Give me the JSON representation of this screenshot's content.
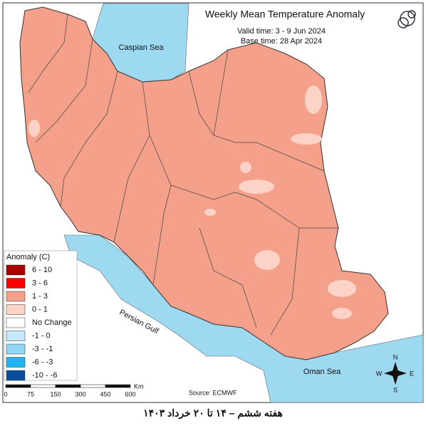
{
  "header": {
    "title": "Weekly Mean Temperature Anomaly",
    "valid_time": "Valid time: 3 - 9 Jun 2024",
    "base_time": "Base time: 28 Apr 2024"
  },
  "labels": {
    "caspian": "Caspian Sea",
    "gulf": "Persian Gulf",
    "oman": "Oman Sea"
  },
  "legend": {
    "title": "Anomaly (C)",
    "items": [
      {
        "label": "6 - 10",
        "color": "#a80000"
      },
      {
        "label": "3 - 6",
        "color": "#ff0000"
      },
      {
        "label": "1 - 3",
        "color": "#f5a08a"
      },
      {
        "label": "0 - 1",
        "color": "#fcd3c6"
      },
      {
        "label": "No Change",
        "color": "#ffffff"
      },
      {
        "label": "-1 - 0",
        "color": "#c6e8fb"
      },
      {
        "label": "-3 - -1",
        "color": "#8fd6f2"
      },
      {
        "label": "-6 - -3",
        "color": "#1fb4f0"
      },
      {
        "label": "-10 - -6",
        "color": "#0a4f9e"
      }
    ]
  },
  "scale": {
    "ticks": [
      "0",
      "75",
      "150",
      "300",
      "450",
      "600"
    ],
    "unit": "Km"
  },
  "source": "Source: ECMWF",
  "compass": {
    "n": "N",
    "s": "S",
    "e": "E",
    "w": "W"
  },
  "caption": "هفته ششم – ۱۴ تا ۲۰ خرداد ۱۴۰۳"
}
